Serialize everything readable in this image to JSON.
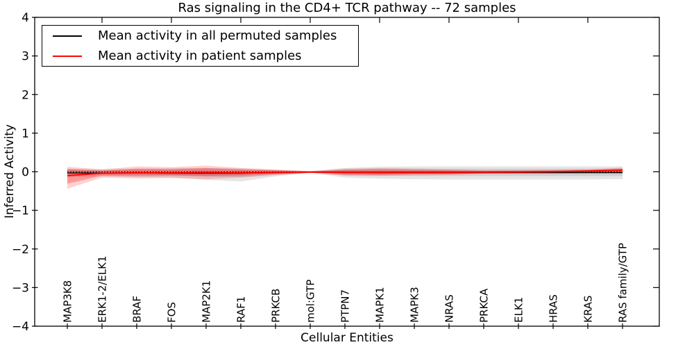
{
  "chart_data": {
    "type": "line",
    "title": "Ras signaling in the CD4+ TCR pathway -- 72 samples",
    "xlabel": "Cellular Entities",
    "ylabel": "Inferred Activity",
    "ylim": [
      -4,
      4
    ],
    "yticks": [
      4,
      3,
      2,
      1,
      0,
      -1,
      -2,
      -3,
      -4
    ],
    "ytick_labels": [
      "4",
      "3",
      "2",
      "1",
      "0",
      "−1",
      "−2",
      "−3",
      "−4"
    ],
    "grid": false,
    "legend_position": "upper left",
    "categories": [
      "MAP3K8",
      "ERK1-2/ELK1",
      "BRAF",
      "FOS",
      "MAP2K1",
      "RAF1",
      "PRKCB",
      "mol:GTP",
      "PTPN7",
      "MAPK1",
      "MAPK3",
      "NRAS",
      "PRKCA",
      "ELK1",
      "HRAS",
      "KRAS",
      "RAS family/GTP"
    ],
    "reference_line": {
      "y": 0,
      "style": "dotted",
      "color": "#000000"
    },
    "series": [
      {
        "name": "Mean activity in all permuted samples",
        "color": "#000000",
        "values": [
          -0.03,
          -0.03,
          -0.03,
          -0.04,
          -0.04,
          -0.04,
          -0.02,
          -0.01,
          -0.02,
          -0.02,
          -0.02,
          -0.02,
          -0.02,
          -0.02,
          -0.02,
          -0.02,
          -0.02
        ]
      },
      {
        "name": "Mean activity in patient samples",
        "color": "#ff0000",
        "values": [
          -0.1,
          -0.035,
          -0.03,
          -0.03,
          -0.02,
          -0.03,
          -0.02,
          -0.01,
          -0.01,
          -0.01,
          -0.01,
          -0.01,
          -0.01,
          -0.005,
          0.005,
          0.02,
          0.04
        ]
      }
    ],
    "bands": [
      {
        "name": "permuted-band-outer",
        "color": "rgba(0,0,0,0.10)",
        "upper": [
          0.08,
          0.07,
          0.08,
          0.09,
          0.1,
          0.09,
          0.05,
          0.01,
          0.1,
          0.13,
          0.14,
          0.14,
          0.14,
          0.14,
          0.14,
          0.14,
          0.14
        ],
        "lower": [
          -0.14,
          -0.12,
          -0.14,
          -0.15,
          -0.21,
          -0.25,
          -0.12,
          -0.03,
          -0.15,
          -0.18,
          -0.19,
          -0.2,
          -0.2,
          -0.2,
          -0.2,
          -0.2,
          -0.19
        ]
      },
      {
        "name": "permuted-band-inner",
        "color": "rgba(0,0,0,0.09)",
        "upper": [
          0.05,
          0.04,
          0.05,
          0.05,
          0.06,
          0.05,
          0.03,
          0.005,
          0.06,
          0.08,
          0.08,
          0.08,
          0.08,
          0.08,
          0.08,
          0.08,
          0.08
        ],
        "lower": [
          -0.08,
          -0.07,
          -0.08,
          -0.09,
          -0.12,
          -0.14,
          -0.07,
          -0.015,
          -0.09,
          -0.1,
          -0.11,
          -0.11,
          -0.11,
          -0.11,
          -0.11,
          -0.11,
          -0.11
        ]
      },
      {
        "name": "patient-band-outer",
        "color": "rgba(255,0,0,0.18)",
        "upper": [
          0.13,
          0.06,
          0.14,
          0.12,
          0.16,
          0.1,
          0.06,
          0.02,
          0.08,
          0.1,
          0.08,
          0.06,
          0.04,
          0.04,
          0.05,
          0.06,
          0.11
        ],
        "lower": [
          -0.44,
          -0.15,
          -0.17,
          -0.16,
          -0.19,
          -0.15,
          -0.09,
          -0.03,
          -0.1,
          -0.11,
          -0.09,
          -0.08,
          -0.05,
          -0.05,
          -0.05,
          -0.04,
          -0.04
        ]
      },
      {
        "name": "patient-band-inner",
        "color": "rgba(255,0,0,0.28)",
        "upper": [
          0.07,
          0.03,
          0.08,
          0.07,
          0.1,
          0.06,
          0.04,
          0.01,
          0.05,
          0.06,
          0.05,
          0.04,
          0.025,
          0.025,
          0.03,
          0.04,
          0.08
        ],
        "lower": [
          -0.31,
          -0.1,
          -0.11,
          -0.1,
          -0.12,
          -0.1,
          -0.06,
          -0.02,
          -0.07,
          -0.08,
          -0.06,
          -0.06,
          -0.04,
          -0.03,
          -0.03,
          -0.025,
          -0.025
        ]
      }
    ]
  }
}
